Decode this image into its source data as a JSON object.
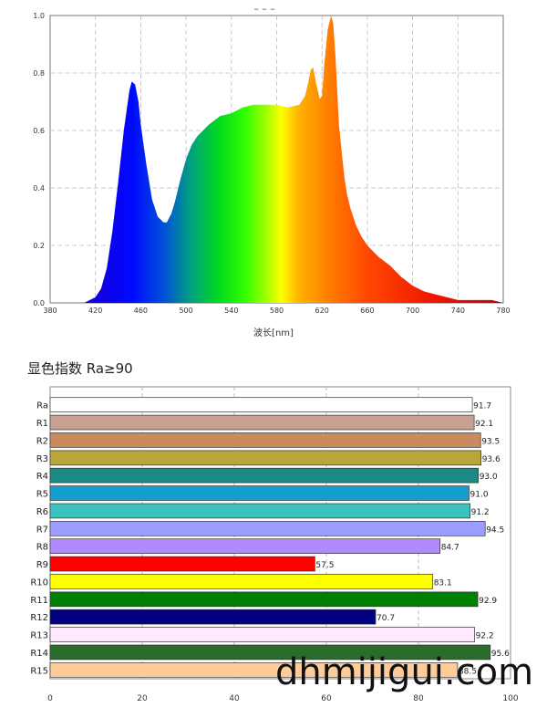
{
  "spectrum_chart": {
    "header_text": "– – –",
    "xlabel": "波长[nm]"
  },
  "cri_chart": {
    "title": "显色指数 Ra≥90"
  },
  "watermark": "dhmijigui.com",
  "chart_data": [
    {
      "type": "area",
      "xlabel": "波长[nm]",
      "xlim": [
        380,
        780
      ],
      "ylim": [
        0,
        1.0
      ],
      "x_ticks": [
        380,
        420,
        460,
        500,
        540,
        580,
        620,
        660,
        700,
        740,
        780
      ],
      "y_ticks": [
        0.0,
        0.2,
        0.4,
        0.6,
        0.8,
        1.0
      ],
      "grid": true,
      "x": [
        380,
        390,
        400,
        410,
        420,
        425,
        430,
        435,
        440,
        445,
        450,
        452,
        455,
        458,
        460,
        465,
        470,
        475,
        480,
        483,
        487,
        490,
        495,
        500,
        505,
        510,
        520,
        530,
        540,
        550,
        560,
        570,
        580,
        590,
        600,
        605,
        608,
        610,
        612,
        615,
        618,
        620,
        622,
        625,
        628,
        630,
        632,
        635,
        638,
        640,
        642,
        645,
        650,
        655,
        660,
        670,
        680,
        690,
        700,
        710,
        720,
        730,
        740,
        750,
        760,
        770,
        780
      ],
      "y": [
        0.0,
        0.0,
        0.0,
        0.0,
        0.02,
        0.05,
        0.12,
        0.25,
        0.42,
        0.6,
        0.74,
        0.77,
        0.76,
        0.7,
        0.62,
        0.48,
        0.36,
        0.3,
        0.28,
        0.28,
        0.31,
        0.35,
        0.43,
        0.5,
        0.55,
        0.58,
        0.62,
        0.65,
        0.66,
        0.68,
        0.69,
        0.69,
        0.69,
        0.68,
        0.69,
        0.72,
        0.77,
        0.81,
        0.82,
        0.76,
        0.71,
        0.72,
        0.83,
        0.95,
        1.0,
        0.97,
        0.85,
        0.62,
        0.5,
        0.43,
        0.38,
        0.33,
        0.27,
        0.23,
        0.2,
        0.16,
        0.13,
        0.09,
        0.06,
        0.04,
        0.03,
        0.02,
        0.01,
        0.01,
        0.01,
        0.01,
        0.0
      ]
    },
    {
      "type": "bar",
      "orientation": "horizontal",
      "categories": [
        "Ra",
        "R1",
        "R2",
        "R3",
        "R4",
        "R5",
        "R6",
        "R7",
        "R8",
        "R9",
        "R10",
        "R11",
        "R12",
        "R13",
        "R14",
        "R15"
      ],
      "values": [
        91.7,
        92.1,
        93.5,
        93.6,
        93.0,
        91.0,
        91.2,
        94.5,
        84.7,
        57.5,
        83.1,
        92.9,
        70.7,
        92.2,
        95.6,
        88.5
      ],
      "value_labels": [
        "91.7",
        "92.1",
        "93.5",
        "93.6",
        "93.0",
        "91.0",
        "91.2",
        "94.5",
        "84.7",
        "57.5",
        "83.1",
        "92.9",
        "70.7",
        "92.2",
        "95.6",
        "88.5"
      ],
      "colors": [
        "#ffffff",
        "#c9a192",
        "#c98a5e",
        "#b9a63a",
        "#1a8a82",
        "#139ecb",
        "#3cc1bd",
        "#9d9dff",
        "#b389ff",
        "#ff0000",
        "#ffff00",
        "#008000",
        "#000080",
        "#ffe9ff",
        "#2b6b2b",
        "#ffcc99"
      ],
      "xlim": [
        0,
        100
      ],
      "x_ticks": [
        0,
        20,
        40,
        60,
        80,
        100
      ],
      "grid": true
    }
  ]
}
